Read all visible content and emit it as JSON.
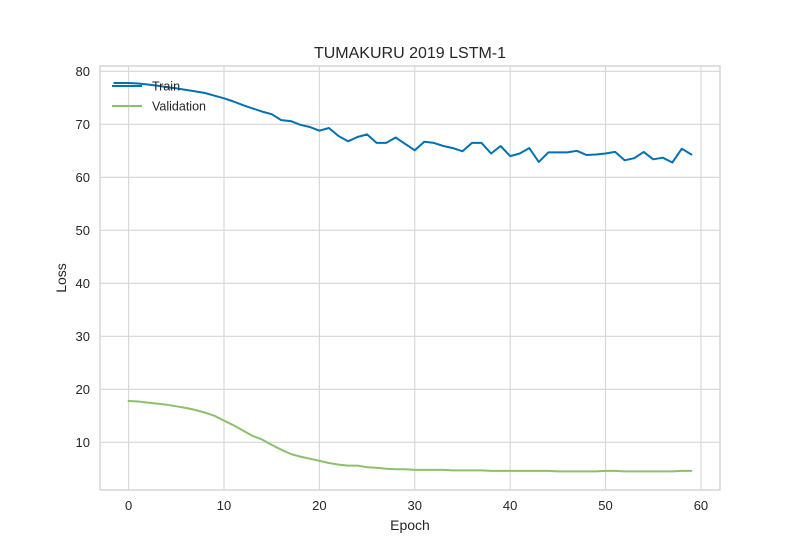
{
  "chart_data": {
    "type": "line",
    "title": "TUMAKURU 2019 LSTM-1",
    "xlabel": "Epoch",
    "ylabel": "Loss",
    "xlim": [
      -3,
      62
    ],
    "ylim": [
      1,
      81
    ],
    "xticks": [
      0,
      10,
      20,
      30,
      40,
      50,
      60
    ],
    "yticks": [
      10,
      20,
      30,
      40,
      50,
      60,
      70,
      80
    ],
    "grid": true,
    "legend_position": "top-left",
    "series": [
      {
        "name": "Train",
        "color": "#0072b2",
        "x": [
          -1.5,
          0,
          1,
          2,
          3,
          4,
          5,
          6,
          7,
          8,
          9,
          10,
          11,
          12,
          13,
          14,
          15,
          16,
          17,
          18,
          19,
          20,
          21,
          22,
          23,
          24,
          25,
          26,
          27,
          28,
          29,
          30,
          31,
          32,
          33,
          34,
          35,
          36,
          37,
          38,
          39,
          40,
          41,
          42,
          43,
          44,
          45,
          46,
          47,
          48,
          49,
          50,
          51,
          52,
          53,
          54,
          55,
          56,
          57,
          58,
          59
        ],
        "y": [
          77.8,
          77.8,
          77.7,
          77.5,
          77.3,
          77.0,
          76.8,
          76.5,
          76.2,
          75.9,
          75.4,
          74.9,
          74.3,
          73.6,
          73.0,
          72.4,
          71.9,
          70.8,
          70.6,
          69.9,
          69.5,
          68.8,
          69.3,
          67.8,
          66.8,
          67.6,
          68.1,
          66.5,
          66.5,
          67.5,
          66.3,
          65.1,
          66.7,
          66.5,
          65.9,
          65.5,
          64.9,
          66.5,
          66.5,
          64.5,
          65.9,
          64.0,
          64.5,
          65.5,
          62.9,
          64.7,
          64.7,
          64.7,
          65.0,
          64.2,
          64.3,
          64.5,
          64.8,
          63.2,
          63.6,
          64.8,
          63.4,
          63.7,
          62.8,
          65.4,
          64.3
        ]
      },
      {
        "name": "Validation",
        "color": "#8cc06b",
        "x": [
          0,
          1,
          2,
          3,
          4,
          5,
          6,
          7,
          8,
          9,
          10,
          11,
          12,
          13,
          14,
          15,
          16,
          17,
          18,
          19,
          20,
          21,
          22,
          23,
          24,
          25,
          26,
          27,
          28,
          29,
          30,
          31,
          32,
          33,
          34,
          35,
          36,
          37,
          38,
          39,
          40,
          41,
          42,
          43,
          44,
          45,
          46,
          47,
          48,
          49,
          50,
          51,
          52,
          53,
          54,
          55,
          56,
          57,
          58,
          59
        ],
        "y": [
          17.8,
          17.7,
          17.5,
          17.3,
          17.1,
          16.8,
          16.5,
          16.1,
          15.6,
          15.0,
          14.1,
          13.2,
          12.2,
          11.2,
          10.5,
          9.5,
          8.6,
          7.8,
          7.3,
          6.9,
          6.5,
          6.1,
          5.8,
          5.6,
          5.6,
          5.3,
          5.2,
          5.0,
          4.9,
          4.9,
          4.8,
          4.8,
          4.8,
          4.8,
          4.7,
          4.7,
          4.7,
          4.7,
          4.6,
          4.6,
          4.6,
          4.6,
          4.6,
          4.6,
          4.6,
          4.5,
          4.5,
          4.5,
          4.5,
          4.5,
          4.6,
          4.6,
          4.5,
          4.5,
          4.5,
          4.5,
          4.5,
          4.5,
          4.6,
          4.6
        ]
      }
    ]
  }
}
